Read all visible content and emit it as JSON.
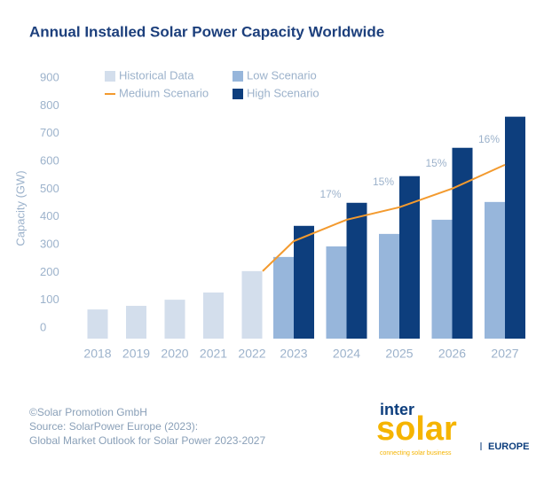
{
  "chart_data": {
    "type": "bar",
    "title": "Annual Installed Solar Power Capacity Worldwide",
    "y_label": "Capacity (GW)",
    "categories": [
      "2018",
      "2019",
      "2020",
      "2021",
      "2022",
      "2023",
      "2024",
      "2025",
      "2026",
      "2027"
    ],
    "series": [
      {
        "name": "Historical Data",
        "color": "#d3deec",
        "kind": "bar",
        "values": [
          105,
          118,
          140,
          166,
          243,
          null,
          null,
          null,
          null,
          null
        ]
      },
      {
        "name": "Low Scenario",
        "color": "#97b6db",
        "kind": "bar",
        "values": [
          null,
          null,
          null,
          null,
          null,
          294,
          332,
          377,
          428,
          492
        ]
      },
      {
        "name": "Medium Scenario",
        "color": "#f39a2e",
        "kind": "line",
        "values": [
          null,
          null,
          null,
          null,
          243,
          351,
          428,
          473,
          540,
          626
        ]
      },
      {
        "name": "High Scenario",
        "color": "#0d3e7d",
        "kind": "bar",
        "values": [
          null,
          null,
          null,
          null,
          null,
          406,
          489,
          585,
          687,
          799
        ]
      }
    ],
    "annotations": [
      {
        "text": "17%",
        "category": "2024"
      },
      {
        "text": "15%",
        "category": "2025"
      },
      {
        "text": "15%",
        "category": "2026"
      },
      {
        "text": "16%",
        "category": "2027"
      }
    ],
    "ylim": [
      0,
      900
    ],
    "yticks": [
      0,
      100,
      200,
      300,
      400,
      500,
      600,
      700,
      800,
      900
    ],
    "grid": false
  },
  "footer": {
    "lines": [
      "©Solar Promotion GmbH",
      "Source: SolarPower Europe (2023):",
      "Global Market Outlook for Solar Power 2023-2027"
    ]
  },
  "logo": {
    "top": "inter",
    "main": "solar",
    "tagline": "connecting solar business",
    "region": "EUROPE"
  }
}
